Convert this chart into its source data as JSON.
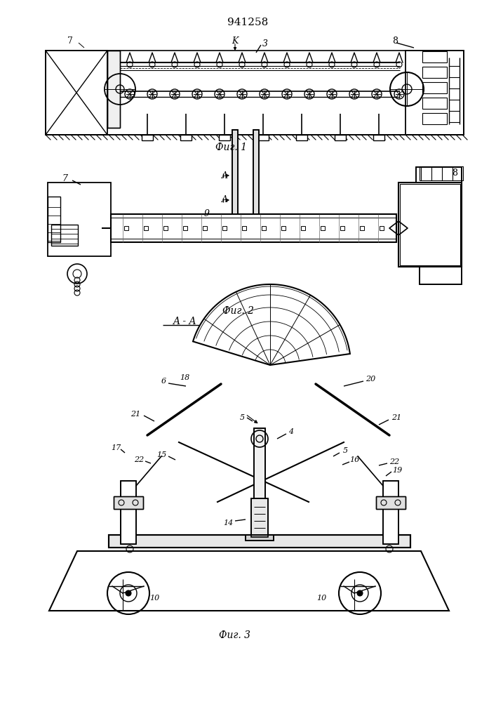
{
  "title": "941258",
  "fig1_label": "Фиг. 1",
  "fig2_label": "Фиг. 2",
  "fig3_label": "Фиг. 3",
  "bg_color": "#ffffff",
  "line_color": "#000000"
}
